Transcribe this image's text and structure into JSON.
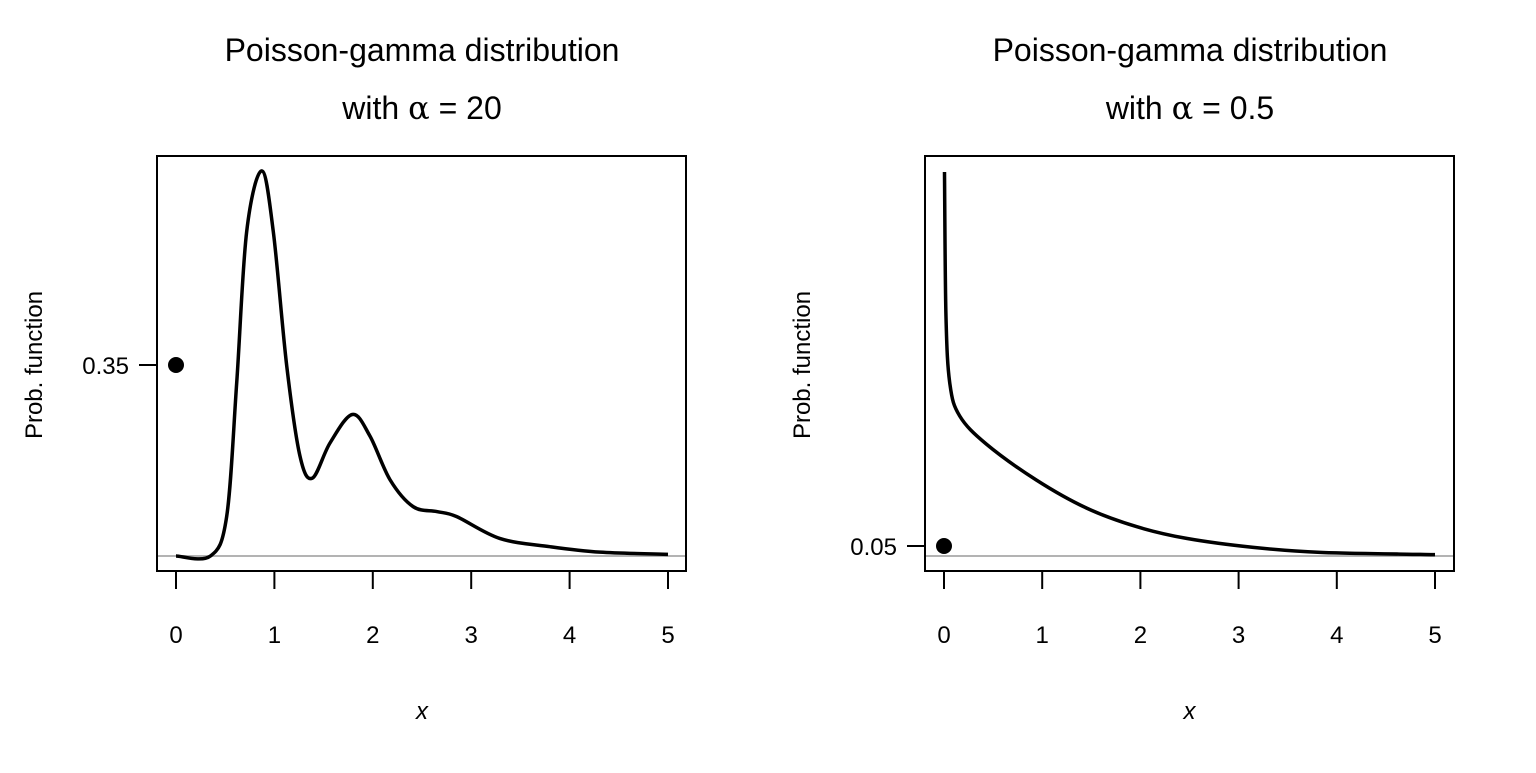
{
  "chart_data": [
    {
      "type": "line",
      "title": "Poisson-gamma distribution",
      "subtitle_prefix": "with ",
      "subtitle_symbol": "α",
      "subtitle_suffix": " = 20",
      "xlabel": "x",
      "ylabel": "Prob. function",
      "xlim": [
        0,
        5
      ],
      "ylim": [
        0,
        0.7
      ],
      "xticks": [
        "0",
        "1",
        "2",
        "3",
        "4",
        "5"
      ],
      "yticks": [
        "0.35"
      ],
      "grid": false,
      "baseline_color": "#b3b3b3",
      "line_color": "#000000",
      "series": [
        {
          "x": [
            0,
            0.35,
            0.515,
            0.617,
            0.718,
            0.871,
            0.989,
            1.125,
            1.26,
            1.386,
            1.565,
            1.792,
            1.97,
            2.175,
            2.41,
            2.65,
            2.85,
            3.29,
            3.8,
            4.31,
            5
          ],
          "y": [
            0,
            0,
            0.072,
            0.316,
            0.591,
            0.702,
            0.591,
            0.347,
            0.182,
            0.142,
            0.206,
            0.258,
            0.219,
            0.139,
            0.09,
            0.081,
            0.072,
            0.032,
            0.017,
            0.007,
            0.003
          ]
        }
      ],
      "points": [
        {
          "x": 0,
          "y": 0.35
        }
      ]
    },
    {
      "type": "line",
      "title": "Poisson-gamma distribution",
      "subtitle_prefix": "with ",
      "subtitle_symbol": "α",
      "subtitle_suffix": " = 0.5",
      "xlabel": "x",
      "ylabel": "Prob. function",
      "xlim": [
        0,
        5
      ],
      "ylim": [
        0,
        1.92
      ],
      "xticks": [
        "0",
        "1",
        "2",
        "3",
        "4",
        "5"
      ],
      "yticks": [
        "0.05"
      ],
      "grid": false,
      "baseline_color": "#b3b3b3",
      "line_color": "#000000",
      "series": [
        {
          "x": [
            0.005,
            0.02,
            0.06,
            0.16,
            0.43,
            0.94,
            1.45,
            1.96,
            2.47,
            3.15,
            3.83,
            4.85,
            5
          ],
          "y": [
            1.92,
            1.2,
            0.86,
            0.7,
            0.56,
            0.38,
            0.24,
            0.147,
            0.088,
            0.043,
            0.018,
            0.008,
            0.007
          ]
        }
      ],
      "points": [
        {
          "x": 0,
          "y": 0.05
        }
      ]
    }
  ]
}
